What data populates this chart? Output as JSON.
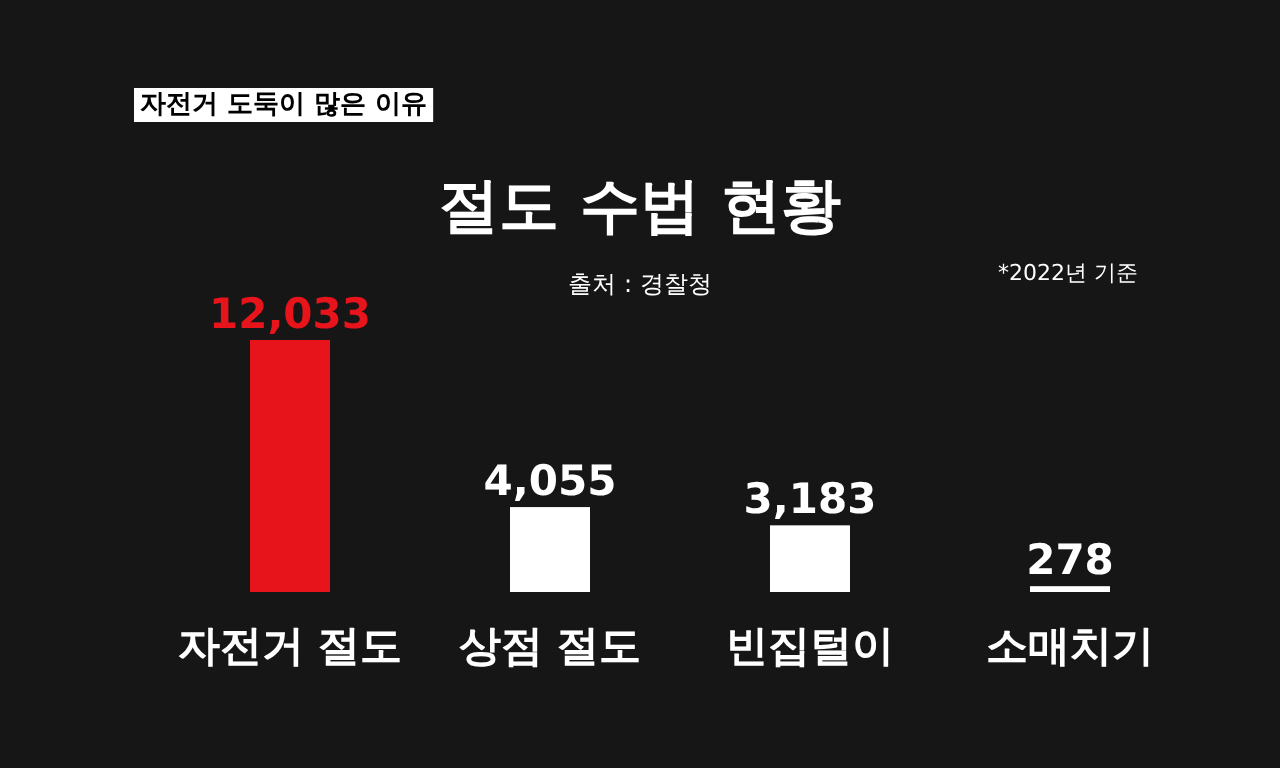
{
  "chart_data": {
    "type": "bar",
    "title": "절도 수법 현황",
    "subtitle": "출처 : 경찰청",
    "categories": [
      "자전거 절도",
      "상점 절도",
      "빈집털이",
      "소매치기"
    ],
    "values": [
      12033,
      4055,
      3183,
      278
    ],
    "colors": [
      "#e8141c",
      "#ffffff",
      "#ffffff",
      "#ffffff"
    ],
    "value_labels": [
      "12,033",
      "4,055",
      "3,183",
      "278"
    ],
    "annotations": [
      "*2022년 기준",
      "자전거 도둑이 많은 이유"
    ]
  }
}
